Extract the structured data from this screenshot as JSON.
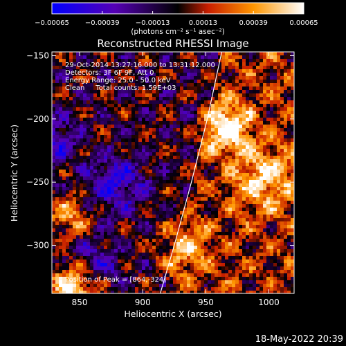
{
  "chart_data": {
    "type": "heatmap",
    "title": "Reconstructed RHESSI Image",
    "xlabel": "Heliocentric X (arcsec)",
    "ylabel": "Heliocentric Y (arcsec)",
    "xlim": [
      828,
      1020
    ],
    "ylim": [
      -338,
      -147
    ],
    "xticks": [
      850,
      900,
      950,
      1000
    ],
    "xtick_labels": [
      "850",
      "900",
      "950",
      "1000"
    ],
    "yticks": [
      -150,
      -200,
      -250,
      -300
    ],
    "ytick_labels": [
      "-150",
      "-200",
      "-250",
      "-300"
    ],
    "colorbar": {
      "range": [
        -0.00065,
        0.00065
      ],
      "ticks": [
        -0.00065,
        -0.00039,
        -0.00013,
        0.00013,
        0.00039,
        0.00065
      ],
      "tick_labels": [
        "-0.00065",
        "-0.00039",
        "-0.00013",
        "0.00013",
        "0.00039",
        "0.00065"
      ],
      "units": "(photons cm⁻² s⁻¹ asec⁻²)",
      "colors": [
        "#0000ff",
        "#5500b4",
        "#000000",
        "#c81e00",
        "#ff9600",
        "#ffffff"
      ]
    },
    "info_lines": [
      "29-Oct-2014 13:27:16.000 to 13:31:12.000",
      "Detectors: 3F 6F 9F, Att 0",
      "Energy Range: 25.0 - 50.0 keV",
      "Clean     Total counts: 1.59E+03"
    ],
    "peak_label": "Position of Peak = [864,-324]",
    "peak": {
      "x": 864,
      "y": -324
    },
    "limb_color": "#ffffff",
    "limb": [
      {
        "x": 962.6,
        "y": -147
      },
      {
        "x": 951.2,
        "y": -200
      },
      {
        "x": 938.6,
        "y": -250
      },
      {
        "x": 925.0,
        "y": -300
      },
      {
        "x": 913.9,
        "y": -338
      }
    ]
  },
  "footer": {
    "timestamp": "18-May-2022 20:39"
  }
}
